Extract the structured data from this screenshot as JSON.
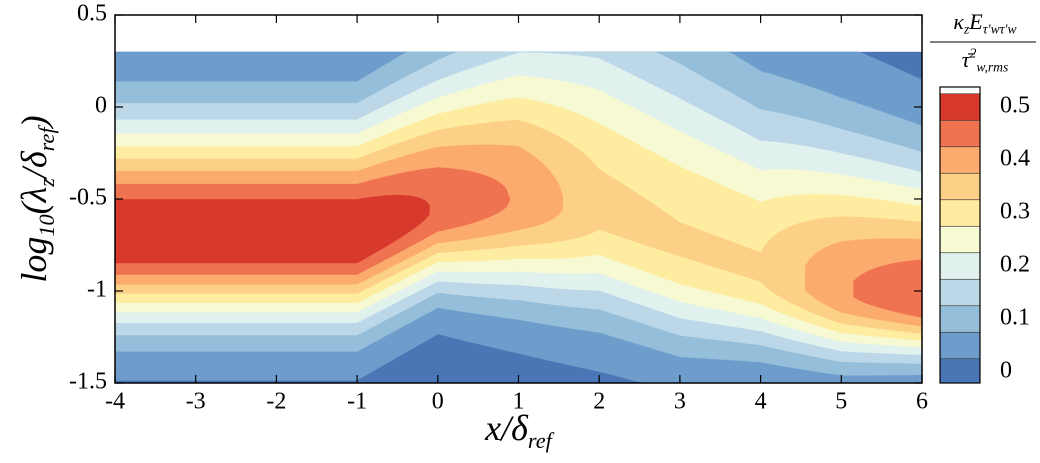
{
  "chart_data": {
    "type": "contour",
    "x_label": [
      {
        "text": "x/δ"
      },
      {
        "text": "ref",
        "sub": true
      }
    ],
    "y_label": [
      {
        "text": "log"
      },
      {
        "text": "10",
        "sub": true
      },
      {
        "text": "(λ"
      },
      {
        "text": "z",
        "sub": true
      },
      {
        "text": "/δ"
      },
      {
        "text": "ref",
        "sub": true
      },
      {
        "text": ")"
      }
    ],
    "xlim": [
      -4,
      6
    ],
    "xticks": [
      -4,
      -3,
      -2,
      -1,
      0,
      1,
      2,
      3,
      4,
      5,
      6
    ],
    "ylim": [
      -1.5,
      0.5
    ],
    "yticks": [
      0.5,
      0,
      -0.5,
      -1,
      -1.5
    ],
    "colorbar": {
      "numerator": [
        {
          "text": "κ"
        },
        {
          "text": "z",
          "sub": true
        },
        {
          "text": "E"
        },
        {
          "text": "τ′wτ′w",
          "sub": true
        }
      ],
      "denominator": [
        {
          "text": "τ̄"
        },
        {
          "text": "2",
          "sup": true
        },
        {
          "text": "w,rms",
          "sub": true
        }
      ],
      "levels": [
        0,
        0.05,
        0.1,
        0.15,
        0.2,
        0.25,
        0.3,
        0.35,
        0.4,
        0.45,
        0.5
      ],
      "colors": [
        "#4a76b6",
        "#6e9dcb",
        "#95bedb",
        "#bcd8e8",
        "#e1f1ee",
        "#f6f9d2",
        "#feeca0",
        "#fdd088",
        "#fbab6d",
        "#ef7350",
        "#d73a2d"
      ],
      "ticks": [
        0,
        0.1,
        0.2,
        0.3,
        0.4,
        0.5
      ]
    }
  }
}
